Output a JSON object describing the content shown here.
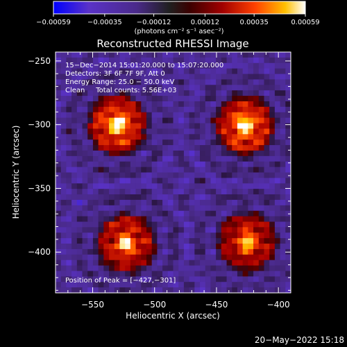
{
  "chart_data": {
    "type": "heatmap",
    "title": "Reconstructed RHESSI Image",
    "xlabel": "Heliocentric X (arcsec)",
    "ylabel": "Heliocentric Y (arcsec)",
    "xlim": [
      -580,
      -390
    ],
    "ylim": [
      -432,
      -243
    ],
    "x_ticks": [
      -550,
      -500,
      -450,
      -400
    ],
    "y_ticks": [
      -250,
      -300,
      -350,
      -400
    ],
    "x_tick_labels": [
      "−550",
      "−500",
      "−450",
      "−400"
    ],
    "y_tick_labels": [
      "−250",
      "−300",
      "−350",
      "−400"
    ],
    "colorbar": {
      "range": [
        -0.00059,
        0.00059
      ],
      "ticks": [
        -0.00059,
        -0.00035,
        -0.00012,
        0.00012,
        0.00035,
        0.00059
      ],
      "tick_labels": [
        "−0.00059",
        "−0.00035",
        "−0.00012",
        "0.00012",
        "0.00035",
        "0.00059"
      ],
      "units": "(photons cm⁻² s⁻¹ asec⁻²)"
    },
    "annotations": [
      "15−Dec−2014 15:01:20.000 to 15:07:20.000",
      "Detectors: 3F 6F 7F 9F, Att 0",
      "Energy Range: 25.0 − 50.0 keV",
      "Clean     Total counts: 5.56E+03"
    ],
    "peak_label": "Position of Peak = [−427,−301]",
    "peak": [
      -427,
      -301
    ],
    "sources": [
      {
        "x": -530,
        "y": -300,
        "strength": 1.0
      },
      {
        "x": -427,
        "y": -301,
        "strength": 1.0
      },
      {
        "x": -523,
        "y": -393,
        "strength": 0.9
      },
      {
        "x": -425,
        "y": -392,
        "strength": 0.85
      }
    ]
  },
  "footer": {
    "date": "20−May−2022 15:18"
  },
  "colors": {
    "background": "#000000",
    "text": "#ffffff"
  }
}
